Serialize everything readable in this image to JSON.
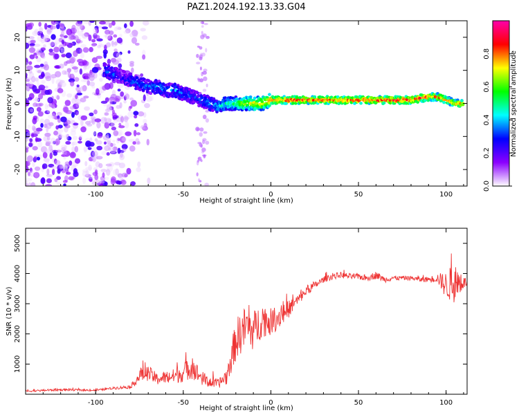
{
  "title": "PAZ1.2024.192.13.33.G04",
  "chart_data": [
    {
      "type": "heatmap",
      "xlabel": "Height of straight line (km)",
      "ylabel": "Frequency (Hz)",
      "xlim": [
        -140,
        112
      ],
      "ylim": [
        -25,
        25
      ],
      "xticks": [
        -100,
        -50,
        0,
        50,
        100
      ],
      "yticks": [
        -20,
        -10,
        0,
        10,
        20
      ],
      "colorbar": {
        "label": "Normalized spectral amplitude",
        "range": [
          0.0,
          1.0
        ],
        "ticks": [
          0.0,
          0.2,
          0.4,
          0.6,
          0.8
        ],
        "colors": [
          "#ffffff",
          "#8b00ff",
          "#0000ff",
          "#00ffff",
          "#00ff00",
          "#ffff00",
          "#ff0000",
          "#ff00aa"
        ]
      },
      "ridge": {
        "x": [
          -95,
          -90,
          -85,
          -80,
          -75,
          -70,
          -65,
          -60,
          -55,
          -50,
          -45,
          -40,
          -35,
          -30,
          -25,
          -20,
          -15,
          -10,
          -5,
          0,
          10,
          20,
          30,
          40,
          50,
          60,
          70,
          80,
          90,
          95,
          100,
          105,
          110
        ],
        "freq": [
          10,
          9,
          8,
          7,
          6,
          5,
          5,
          4,
          4,
          3,
          2,
          1,
          0,
          -1,
          0,
          0,
          0,
          0,
          0,
          1,
          1,
          1,
          1,
          1,
          1,
          1,
          1,
          1,
          2,
          2,
          1,
          0,
          0
        ],
        "amplitude": [
          0.3,
          0.3,
          0.25,
          0.3,
          0.35,
          0.3,
          0.35,
          0.35,
          0.35,
          0.35,
          0.3,
          0.3,
          0.35,
          0.4,
          0.5,
          0.55,
          0.65,
          0.7,
          0.75,
          0.8,
          0.85,
          0.85,
          0.85,
          0.85,
          0.85,
          0.85,
          0.9,
          0.85,
          0.85,
          0.8,
          0.8,
          0.75,
          0.75
        ]
      },
      "noise_region_x": [
        -140,
        -80
      ]
    },
    {
      "type": "line",
      "xlabel": "Height of straight line (km)",
      "ylabel": "SNR (10 * v/v)",
      "xlim": [
        -140,
        112
      ],
      "ylim": [
        0,
        5500
      ],
      "xticks": [
        -100,
        -50,
        0,
        50,
        100
      ],
      "yticks": [
        1000,
        2000,
        3000,
        4000,
        5000
      ],
      "color": "#ee3333",
      "x": [
        -140,
        -120,
        -100,
        -90,
        -80,
        -75,
        -70,
        -65,
        -60,
        -55,
        -50,
        -45,
        -40,
        -35,
        -30,
        -25,
        -20,
        -15,
        -10,
        -5,
        0,
        5,
        10,
        15,
        20,
        25,
        30,
        35,
        40,
        45,
        50,
        55,
        60,
        65,
        70,
        75,
        80,
        85,
        90,
        95,
        100,
        105,
        110,
        112
      ],
      "y": [
        100,
        150,
        130,
        200,
        250,
        600,
        700,
        500,
        550,
        600,
        700,
        900,
        550,
        400,
        350,
        600,
        1800,
        2200,
        2100,
        2500,
        2400,
        2600,
        2800,
        3100,
        3400,
        3600,
        3800,
        3900,
        3950,
        3900,
        3900,
        3850,
        3950,
        3800,
        3850,
        3850,
        3850,
        3800,
        3800,
        3850,
        3600,
        3700,
        3700,
        3700
      ],
      "spread": [
        60,
        70,
        60,
        80,
        120,
        400,
        500,
        400,
        450,
        500,
        600,
        800,
        500,
        400,
        300,
        600,
        1400,
        1400,
        1300,
        1200,
        900,
        800,
        600,
        400,
        300,
        250,
        200,
        200,
        200,
        200,
        200,
        200,
        250,
        200,
        150,
        150,
        150,
        150,
        200,
        300,
        900,
        1400,
        400,
        300
      ]
    }
  ]
}
